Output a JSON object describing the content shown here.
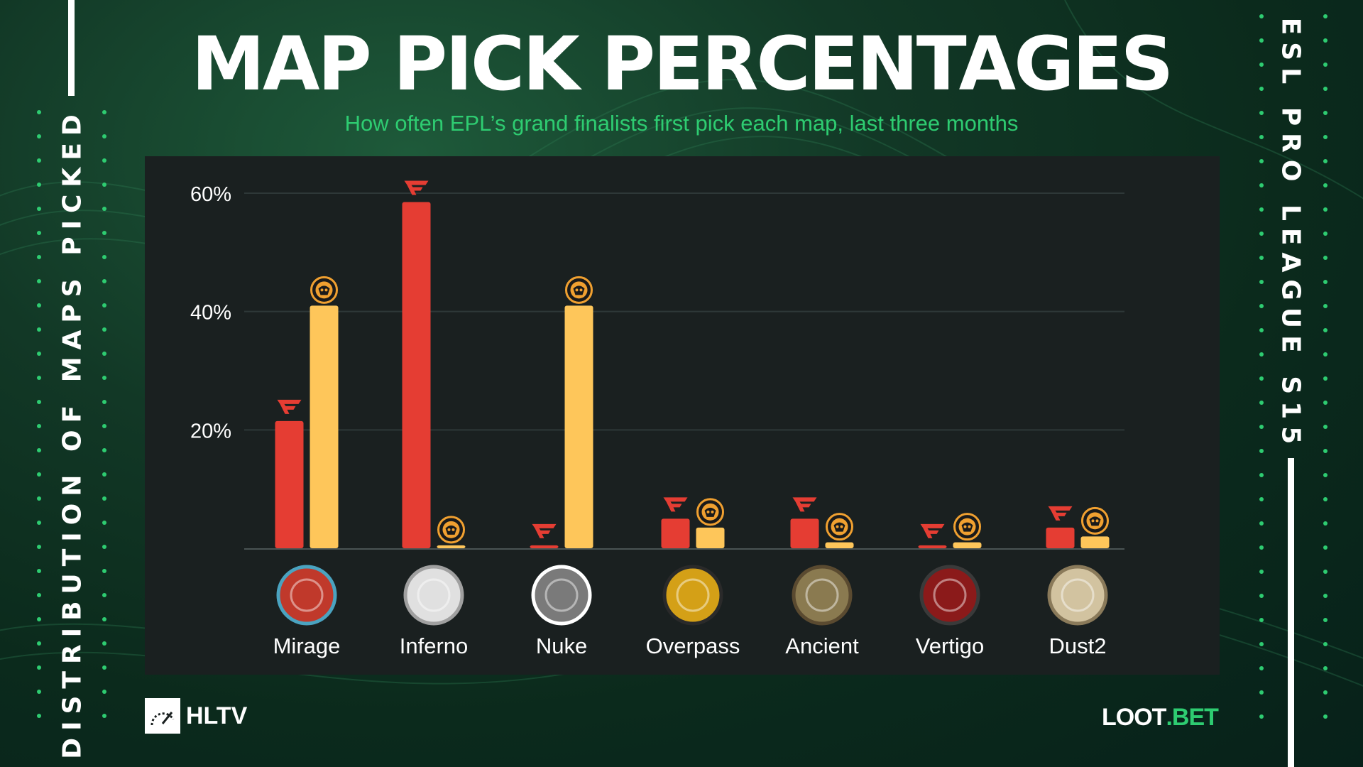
{
  "title": "MAP PICK PERCENTAGES",
  "subtitle": "How often EPL’s grand finalists first pick each map, last three months",
  "side_left": "DISTRIBUTION OF MAPS PICKED",
  "side_right": "ESL PRO LEAGUE S15",
  "logos": {
    "left": "HLTV",
    "right_a": "LOOT",
    "right_b": ".BET"
  },
  "colors": {
    "faze": "#e53d33",
    "enc": "#fec65a",
    "accent": "#2ecc71",
    "panel": "#1a2020"
  },
  "chart_data": {
    "type": "bar",
    "categories": [
      "Mirage",
      "Inferno",
      "Nuke",
      "Overpass",
      "Ancient",
      "Vertigo",
      "Dust2"
    ],
    "series": [
      {
        "icon": "faze-clan-logo-icon",
        "color": "#e53d33",
        "values": [
          21.5,
          58.5,
          0.5,
          5,
          5,
          0.5,
          3.5
        ]
      },
      {
        "icon": "ence-logo-icon",
        "color": "#fec65a",
        "values": [
          41,
          0.5,
          41,
          3.5,
          1,
          1,
          2
        ]
      }
    ],
    "yticks": [
      "20%",
      "40%",
      "60%"
    ],
    "ylim": [
      0,
      60
    ],
    "grid": true,
    "category_icons": [
      "mirage-map-icon",
      "inferno-map-icon",
      "nuke-map-icon",
      "overpass-map-icon",
      "ancient-map-icon",
      "vertigo-map-icon",
      "dust2-map-icon"
    ]
  }
}
